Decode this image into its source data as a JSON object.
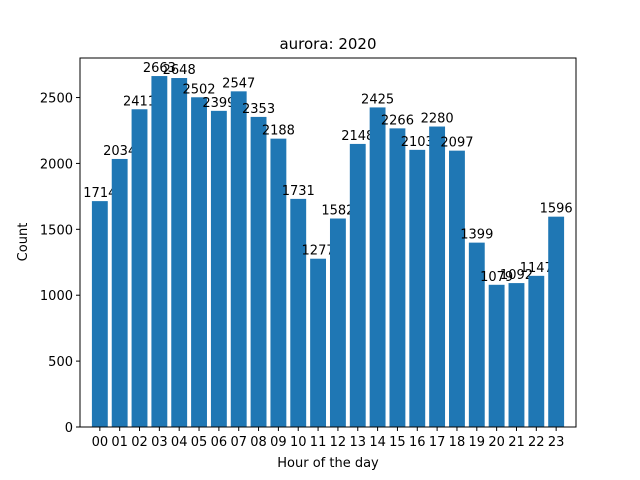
{
  "chart_data": {
    "type": "bar",
    "title": "aurora: 2020",
    "xlabel": "Hour of the day",
    "ylabel": "Count",
    "categories": [
      "00",
      "01",
      "02",
      "03",
      "04",
      "05",
      "06",
      "07",
      "08",
      "09",
      "10",
      "11",
      "12",
      "13",
      "14",
      "15",
      "16",
      "17",
      "18",
      "19",
      "20",
      "21",
      "22",
      "23"
    ],
    "values": [
      1714,
      2034,
      2411,
      2663,
      2648,
      2502,
      2399,
      2547,
      2353,
      2188,
      1731,
      1277,
      1582,
      2148,
      2425,
      2266,
      2103,
      2280,
      2097,
      1399,
      1079,
      1092,
      1147,
      1596
    ],
    "ylim": [
      0,
      2800
    ],
    "yticks": [
      0,
      500,
      1000,
      1500,
      2000,
      2500
    ],
    "bar_color": "#1f77b4",
    "grid": false,
    "legend": "none"
  }
}
